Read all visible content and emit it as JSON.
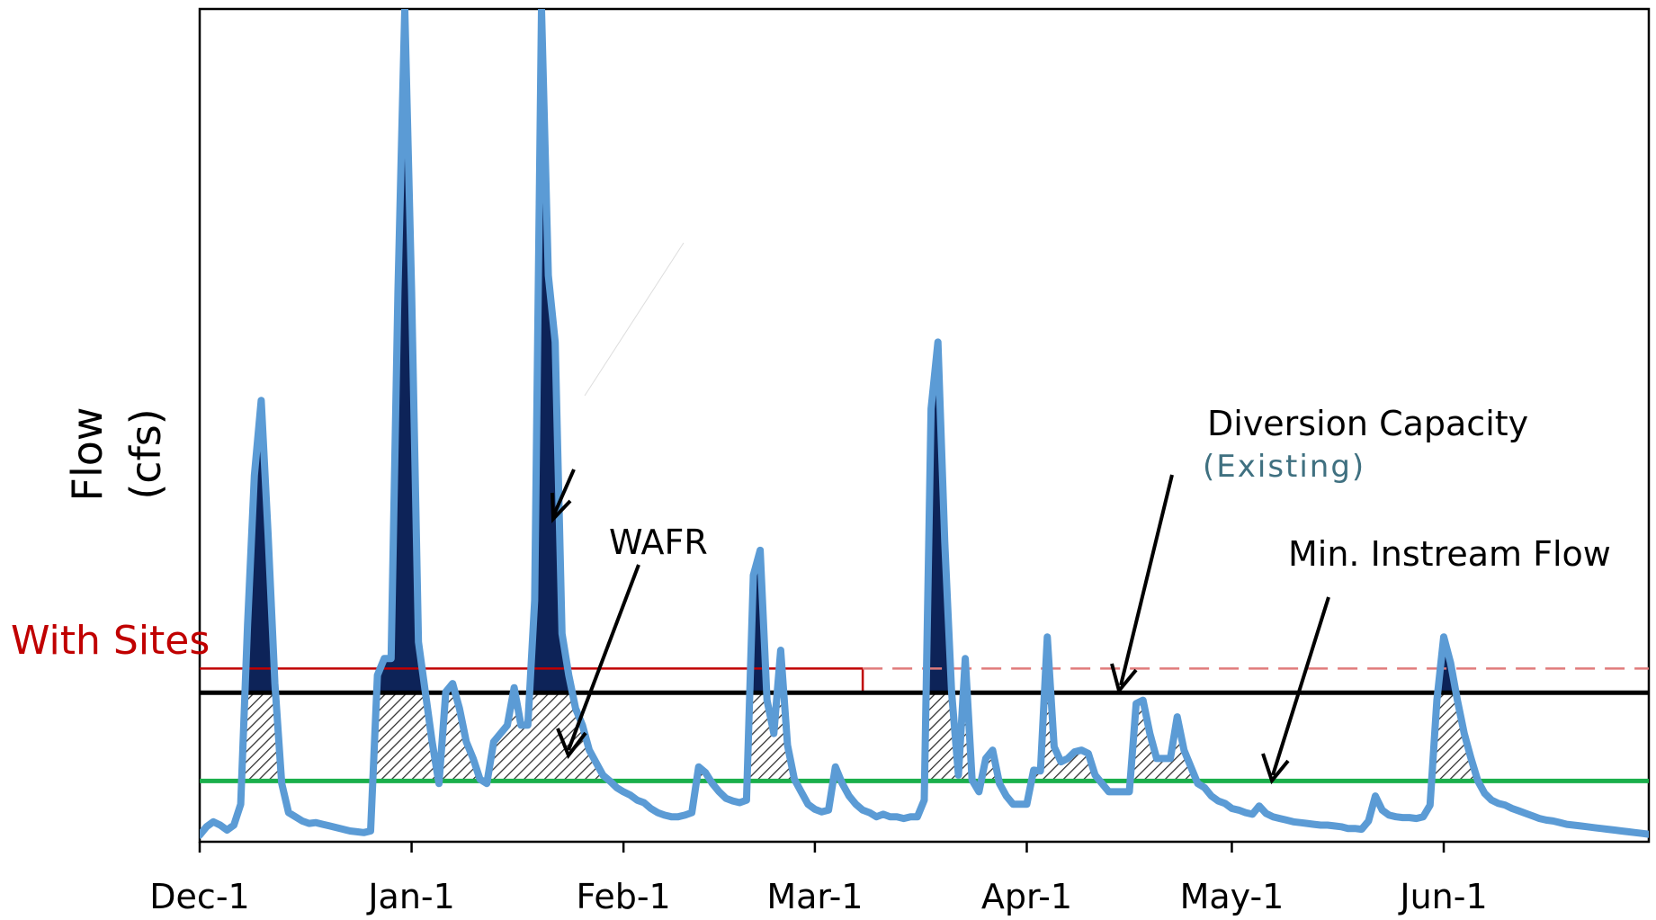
{
  "chart_data": {
    "type": "area",
    "ylabel_line1": "Flow",
    "ylabel_line2": "(cfs)",
    "xlabel": "",
    "x_tick_labels": [
      "Dec-1",
      "Jan-1",
      "Feb-1",
      "Mar-1",
      "Apr-1",
      "May-1",
      "Jun-1"
    ],
    "x_tick_days": [
      0,
      31,
      62,
      90,
      121,
      151,
      182
    ],
    "xlim": [
      0,
      212
    ],
    "ylim": [
      0,
      100
    ],
    "y_ticks_shown": false,
    "grid": false,
    "series": [
      {
        "name": "",
        "values": [
          [
            0,
            0.8
          ],
          [
            1,
            1.8
          ],
          [
            2,
            2.4
          ],
          [
            3,
            2
          ],
          [
            4,
            1.4
          ],
          [
            5,
            2
          ],
          [
            6,
            4.5
          ],
          [
            7,
            26
          ],
          [
            8,
            44
          ],
          [
            9,
            53
          ],
          [
            10,
            37
          ],
          [
            11,
            19
          ],
          [
            12,
            7
          ],
          [
            13,
            3.5
          ],
          [
            14,
            3
          ],
          [
            15,
            2.5
          ],
          [
            16,
            2.2
          ],
          [
            17,
            2.3
          ],
          [
            18,
            2.1
          ],
          [
            19,
            1.9
          ],
          [
            20,
            1.7
          ],
          [
            21,
            1.5
          ],
          [
            22,
            1.3
          ],
          [
            23,
            1.2
          ],
          [
            24,
            1.1
          ],
          [
            25,
            1.3
          ],
          [
            26,
            20
          ],
          [
            27,
            22
          ],
          [
            28,
            22
          ],
          [
            29,
            66
          ],
          [
            30,
            100
          ],
          [
            31,
            66
          ],
          [
            32,
            24
          ],
          [
            33,
            18
          ],
          [
            34,
            12
          ],
          [
            35,
            7
          ],
          [
            36,
            18
          ],
          [
            37,
            19
          ],
          [
            38,
            16
          ],
          [
            39,
            12
          ],
          [
            40,
            10
          ],
          [
            41,
            7.5
          ],
          [
            42,
            7
          ],
          [
            43,
            12
          ],
          [
            44,
            13
          ],
          [
            45,
            14
          ],
          [
            46,
            18.5
          ],
          [
            47,
            14
          ],
          [
            48,
            14
          ],
          [
            49,
            29
          ],
          [
            50,
            100
          ],
          [
            51,
            68
          ],
          [
            52,
            60
          ],
          [
            53,
            25
          ],
          [
            54,
            20
          ],
          [
            55,
            16
          ],
          [
            56,
            14
          ],
          [
            57,
            11
          ],
          [
            58,
            9.5
          ],
          [
            59,
            8
          ],
          [
            60,
            7.3
          ],
          [
            61,
            6.5
          ],
          [
            62,
            6
          ],
          [
            63,
            5.6
          ],
          [
            64,
            5
          ],
          [
            65,
            4.7
          ],
          [
            66,
            4
          ],
          [
            67,
            3.5
          ],
          [
            68,
            3.2
          ],
          [
            69,
            3
          ],
          [
            70,
            3
          ],
          [
            71,
            3.2
          ],
          [
            72,
            3.5
          ],
          [
            73,
            9
          ],
          [
            74,
            8.3
          ],
          [
            75,
            7
          ],
          [
            76,
            6
          ],
          [
            77,
            5.2
          ],
          [
            78,
            4.9
          ],
          [
            79,
            4.7
          ],
          [
            80,
            5
          ],
          [
            81,
            32
          ],
          [
            82,
            35
          ],
          [
            83,
            17
          ],
          [
            84,
            13
          ],
          [
            85,
            23
          ],
          [
            86,
            11.6
          ],
          [
            87,
            7.5
          ],
          [
            88,
            6
          ],
          [
            89,
            4.5
          ],
          [
            90,
            3.9
          ],
          [
            91,
            3.6
          ],
          [
            92,
            3.8
          ],
          [
            93,
            9
          ],
          [
            94,
            7
          ],
          [
            95,
            5.5
          ],
          [
            96,
            4.5
          ],
          [
            97,
            3.8
          ],
          [
            98,
            3.5
          ],
          [
            99,
            3
          ],
          [
            100,
            3.3
          ],
          [
            101,
            3
          ],
          [
            102,
            3
          ],
          [
            103,
            2.8
          ],
          [
            104,
            3
          ],
          [
            105,
            3
          ],
          [
            106,
            5
          ],
          [
            107,
            52
          ],
          [
            108,
            60
          ],
          [
            109,
            36
          ],
          [
            110,
            18
          ],
          [
            111,
            8
          ],
          [
            112,
            22
          ],
          [
            113,
            7.4
          ],
          [
            114,
            6
          ],
          [
            115,
            10
          ],
          [
            116,
            11
          ],
          [
            117,
            7
          ],
          [
            118,
            5.5
          ],
          [
            119,
            4.5
          ],
          [
            120,
            4.5
          ],
          [
            121,
            4.5
          ],
          [
            122,
            8.6
          ],
          [
            123,
            8.5
          ],
          [
            124,
            24.6
          ],
          [
            125,
            11.4
          ],
          [
            126,
            9.6
          ],
          [
            127,
            10
          ],
          [
            128,
            10.8
          ],
          [
            129,
            11
          ],
          [
            130,
            10.6
          ],
          [
            131,
            8
          ],
          [
            132,
            7
          ],
          [
            133,
            6
          ],
          [
            134,
            6
          ],
          [
            135,
            6
          ],
          [
            136,
            6
          ],
          [
            137,
            16.6
          ],
          [
            138,
            17
          ],
          [
            139,
            13
          ],
          [
            140,
            10
          ],
          [
            141,
            10
          ],
          [
            142,
            10
          ],
          [
            143,
            15
          ],
          [
            144,
            11
          ],
          [
            145,
            9
          ],
          [
            146,
            7
          ],
          [
            147,
            6.5
          ],
          [
            148,
            5.5
          ],
          [
            149,
            4.9
          ],
          [
            150,
            4.6
          ],
          [
            151,
            4
          ],
          [
            152,
            3.8
          ],
          [
            153,
            3.5
          ],
          [
            154,
            3.3
          ],
          [
            155,
            4.3
          ],
          [
            156,
            3.4
          ],
          [
            157,
            3
          ],
          [
            158,
            2.8
          ],
          [
            159,
            2.6
          ],
          [
            160,
            2.4
          ],
          [
            161,
            2.3
          ],
          [
            162,
            2.2
          ],
          [
            163,
            2.1
          ],
          [
            164,
            2
          ],
          [
            165,
            2
          ],
          [
            166,
            1.9
          ],
          [
            167,
            1.8
          ],
          [
            168,
            1.6
          ],
          [
            169,
            1.6
          ],
          [
            170,
            1.5
          ],
          [
            171,
            2.5
          ],
          [
            172,
            5.5
          ],
          [
            173,
            3.8
          ],
          [
            174,
            3.2
          ],
          [
            175,
            3
          ],
          [
            176,
            2.9
          ],
          [
            177,
            2.9
          ],
          [
            178,
            2.8
          ],
          [
            179,
            3
          ],
          [
            180,
            4.4
          ],
          [
            181,
            17
          ],
          [
            182,
            24.6
          ],
          [
            183,
            21.5
          ],
          [
            184,
            17
          ],
          [
            185,
            13
          ],
          [
            186,
            10
          ],
          [
            187,
            7.3
          ],
          [
            188,
            5.8
          ],
          [
            189,
            5
          ],
          [
            190,
            4.6
          ],
          [
            191,
            4.4
          ],
          [
            192,
            4
          ],
          [
            193,
            3.7
          ],
          [
            194,
            3.4
          ],
          [
            195,
            3.1
          ],
          [
            196,
            2.8
          ],
          [
            197,
            2.6
          ],
          [
            198,
            2.5
          ],
          [
            199,
            2.3
          ],
          [
            200,
            2.1
          ],
          [
            201,
            2
          ],
          [
            202,
            1.9
          ],
          [
            203,
            1.8
          ],
          [
            204,
            1.7
          ],
          [
            205,
            1.6
          ],
          [
            206,
            1.5
          ],
          [
            207,
            1.4
          ],
          [
            208,
            1.3
          ],
          [
            209,
            1.2
          ],
          [
            210,
            1.1
          ],
          [
            211,
            1
          ],
          [
            212,
            0.9
          ]
        ]
      }
    ],
    "thresholds": {
      "with_sites": 20.8,
      "diversion_existing": 17.9,
      "min_instream": 7.3,
      "with_sites_solid_until_day": 97
    },
    "annotations": {
      "with_sites": "With Sites",
      "wafr": "WAFR",
      "diversion_capacity": "Diversion Capacity",
      "diversion_existing": "(Existing)",
      "min_instream_flow": "Min. Instream Flow"
    },
    "colors": {
      "flow_line": "#5b9bd5",
      "above_capacity_fill": "#0d2358",
      "hatch": "#333333",
      "diversion_line": "#000000",
      "min_instream_line": "#1aaf4b",
      "with_sites_line": "#c00000",
      "with_sites_dashed": "#e07b7b",
      "existing_text": "#3f7080"
    }
  }
}
